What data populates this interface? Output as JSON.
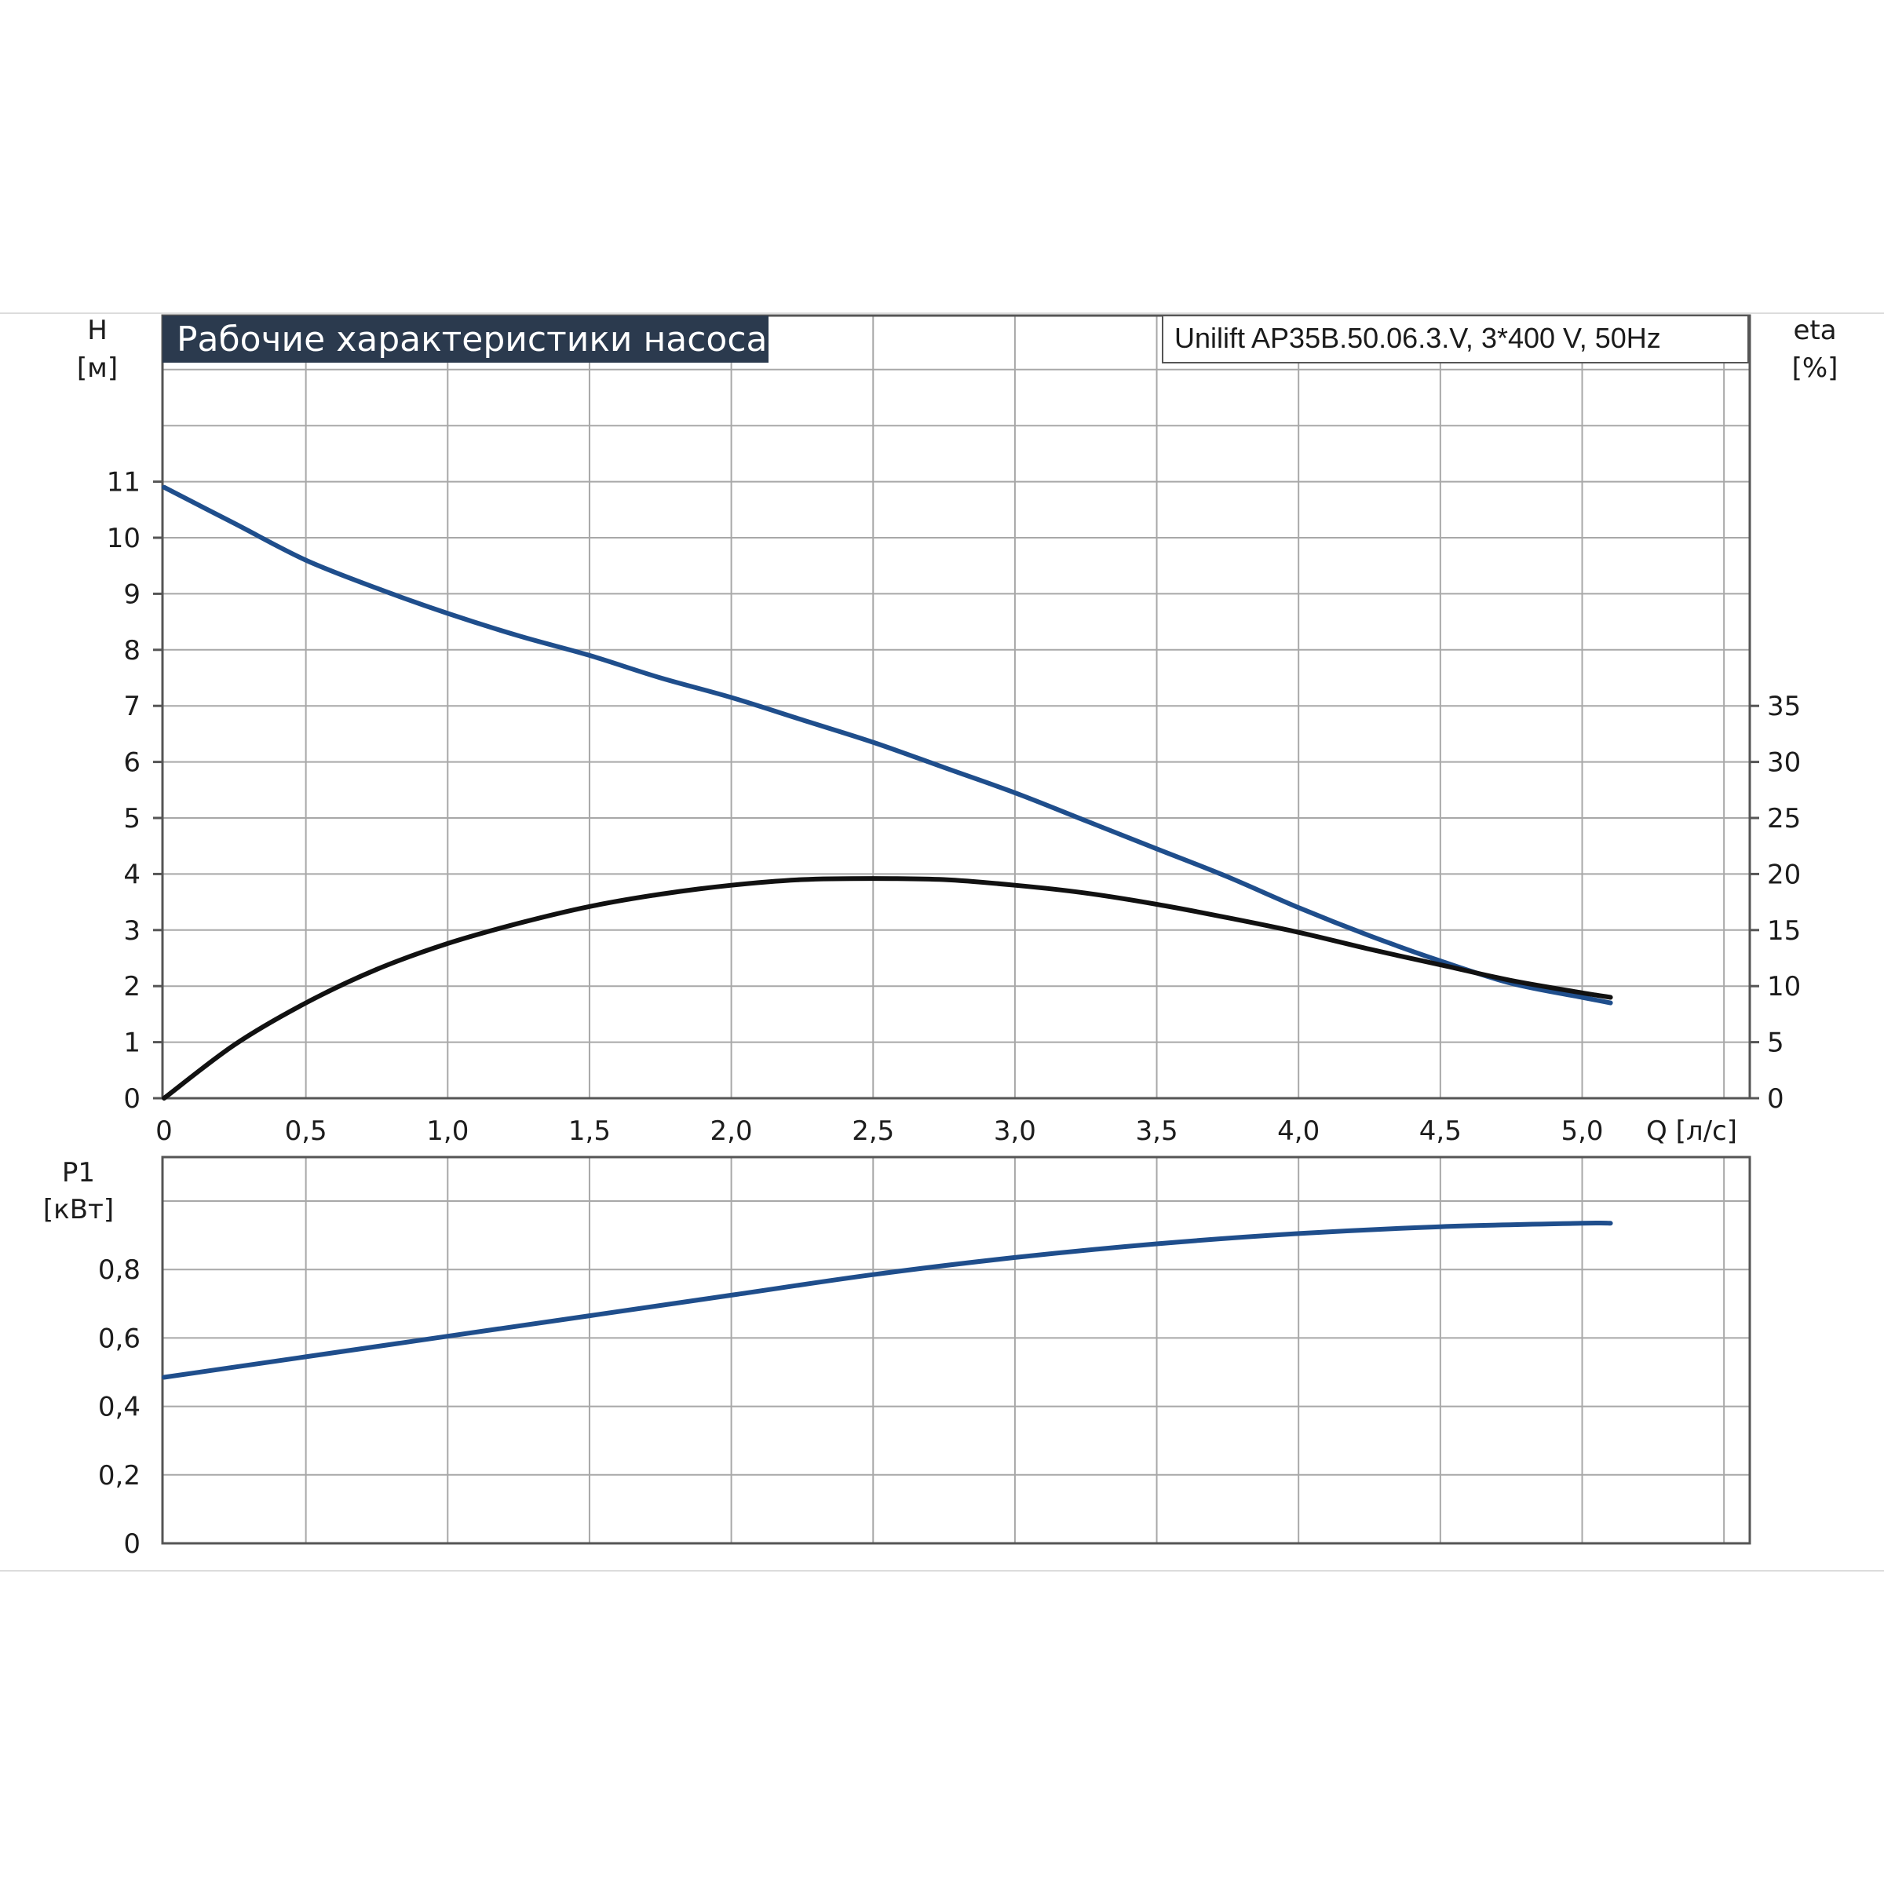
{
  "title": "Рабочие характеристики насоса",
  "model": "Unilift AP35B.50.06.3.V, 3*400 V, 50Hz",
  "colors": {
    "head_curve": "#1f4e8c",
    "eff_curve": "#111111",
    "power_curve": "#1f4e8c",
    "title_bg": "#2b3a4e",
    "grid": "#a8a8a8"
  },
  "top_axis": {
    "y_label": "H",
    "y_unit": "[м]",
    "y2_label": "eta",
    "y2_unit": "[%]",
    "y_ticks": [
      "0",
      "1",
      "2",
      "3",
      "4",
      "5",
      "6",
      "7",
      "8",
      "9",
      "10",
      "11"
    ],
    "y2_ticks": [
      "0",
      "5",
      "10",
      "15",
      "20",
      "25",
      "30",
      "35"
    ]
  },
  "x_axis": {
    "label": "Q [л/с]",
    "ticks": [
      "0",
      "0,5",
      "1,0",
      "1,5",
      "2,0",
      "2,5",
      "3,0",
      "3,5",
      "4,0",
      "4,5",
      "5,0"
    ]
  },
  "bottom_axis": {
    "y_label": "P1",
    "y_unit": "[кВт]",
    "y_ticks": [
      "0",
      "0,2",
      "0,4",
      "0,6",
      "0,8"
    ]
  },
  "chart_data": [
    {
      "type": "line",
      "xlabel": "Q [л/с]",
      "ylabel": "H [м]",
      "y2label": "eta [%]",
      "xlim": [
        0,
        5.5
      ],
      "ylim": [
        0,
        13.5
      ],
      "y2lim": [
        0,
        35
      ],
      "grid": true,
      "series": [
        {
          "axis": "left",
          "x": [
            0,
            0.25,
            0.5,
            0.75,
            1.0,
            1.25,
            1.5,
            1.75,
            2.0,
            2.25,
            2.5,
            2.75,
            3.0,
            3.25,
            3.5,
            3.75,
            4.0,
            4.25,
            4.5,
            4.75,
            5.0,
            5.1
          ],
          "values": [
            10.9,
            10.25,
            9.6,
            9.1,
            8.65,
            8.25,
            7.9,
            7.5,
            7.15,
            6.75,
            6.35,
            5.9,
            5.45,
            4.95,
            4.45,
            3.95,
            3.4,
            2.9,
            2.45,
            2.05,
            1.8,
            1.7
          ]
        },
        {
          "axis": "right",
          "x": [
            0,
            0.25,
            0.5,
            0.75,
            1.0,
            1.25,
            1.5,
            1.75,
            2.0,
            2.25,
            2.5,
            2.75,
            3.0,
            3.25,
            3.5,
            3.75,
            4.0,
            4.25,
            4.5,
            4.75,
            5.0,
            5.1
          ],
          "values": [
            0,
            4.8,
            8.5,
            11.5,
            13.8,
            15.6,
            17.1,
            18.2,
            19.0,
            19.5,
            19.6,
            19.5,
            19.0,
            18.3,
            17.3,
            16.1,
            14.8,
            13.3,
            11.9,
            10.5,
            9.4,
            9.0
          ]
        }
      ]
    },
    {
      "type": "line",
      "xlabel": "Q [л/с]",
      "ylabel": "P1 [кВт]",
      "xlim": [
        0,
        5.5
      ],
      "ylim": [
        0,
        1.0
      ],
      "grid": true,
      "series": [
        {
          "x": [
            0,
            0.5,
            1.0,
            1.5,
            2.0,
            2.5,
            3.0,
            3.5,
            4.0,
            4.5,
            5.0,
            5.1
          ],
          "values": [
            0.485,
            0.545,
            0.605,
            0.665,
            0.725,
            0.785,
            0.835,
            0.875,
            0.905,
            0.925,
            0.935,
            0.935
          ]
        }
      ]
    }
  ]
}
